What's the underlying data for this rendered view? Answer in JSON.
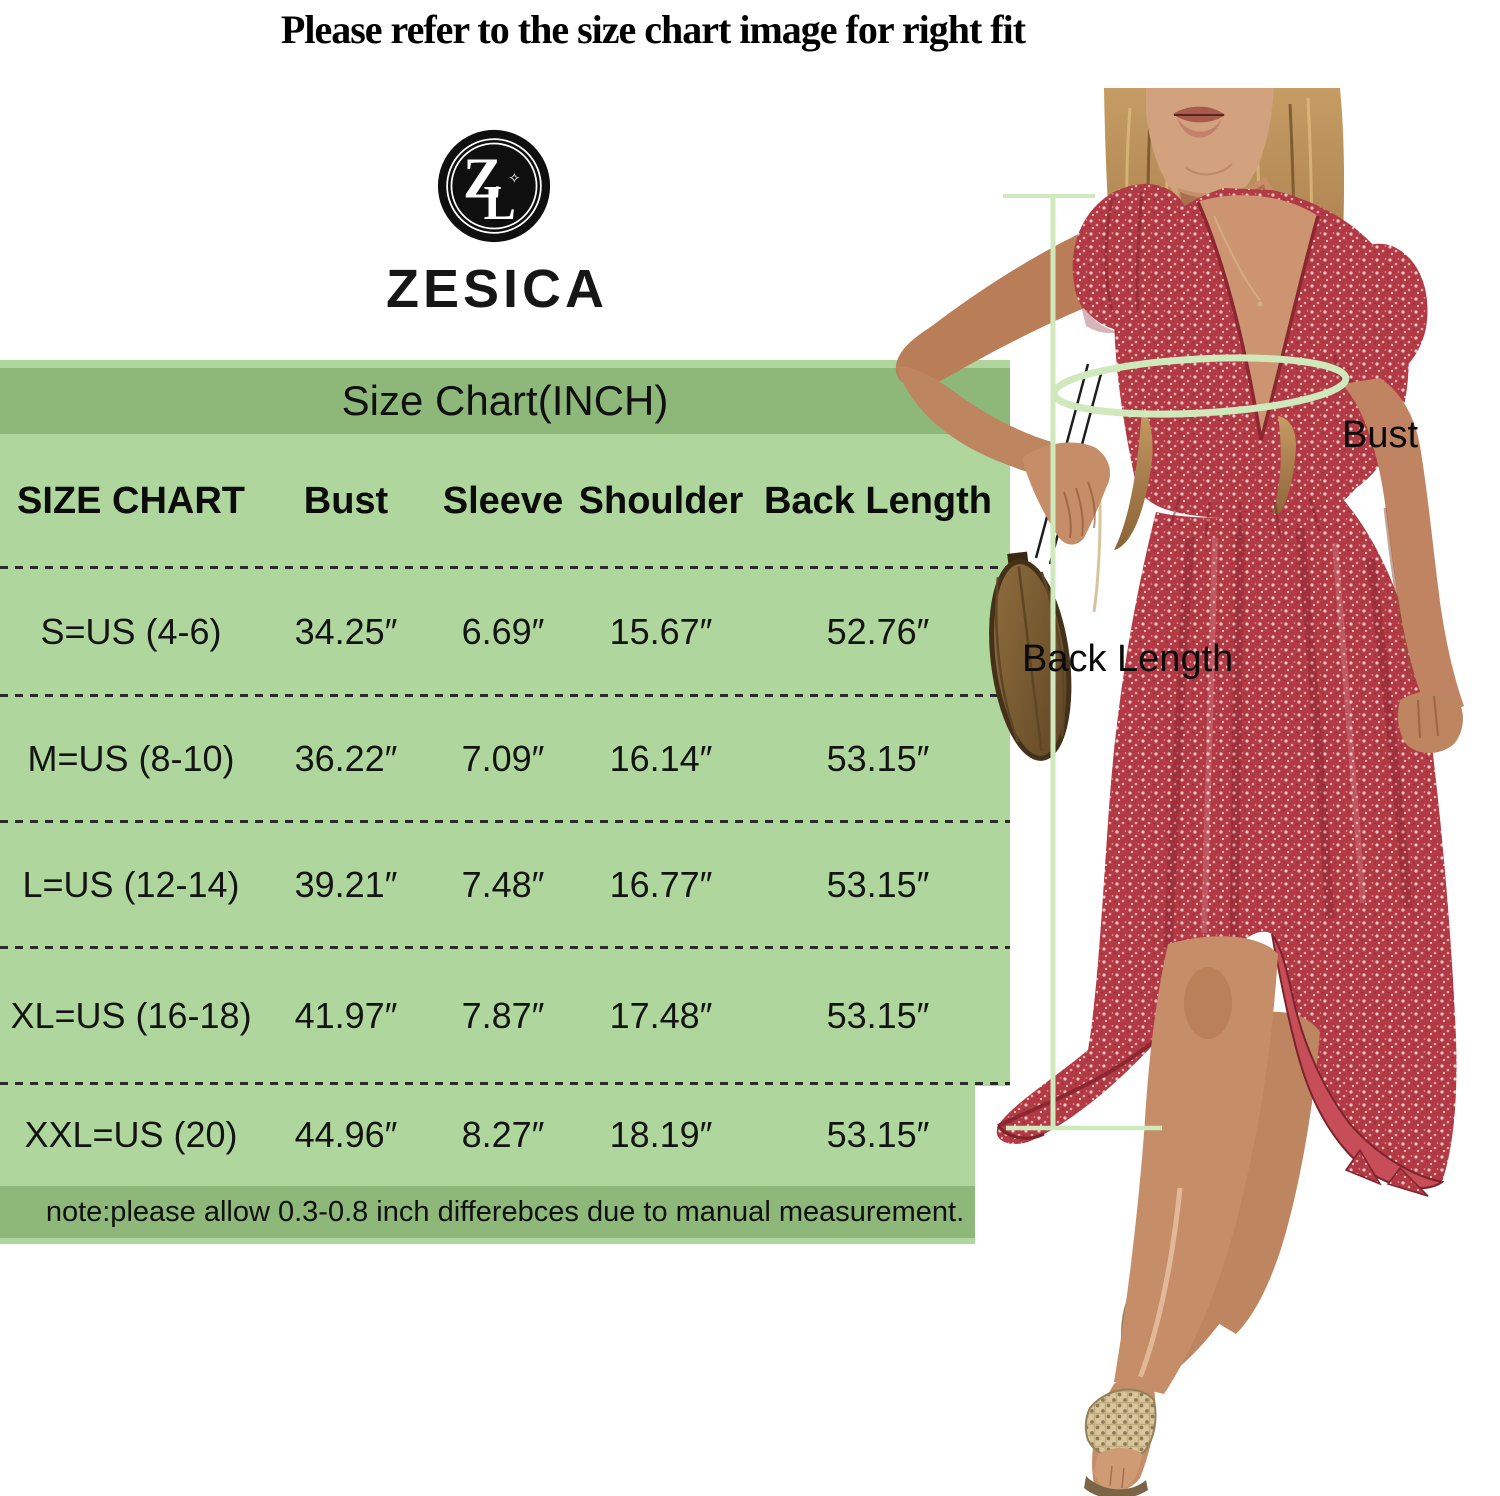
{
  "title": "Please refer to the size chart image for right fit",
  "brand": {
    "name": "ZESICA",
    "monogram_z": "Z",
    "monogram_l": "L"
  },
  "size_chart": {
    "heading": "Size Chart(INCH)",
    "columns": [
      "SIZE CHART",
      "Bust",
      "Sleeve",
      "Shoulder",
      "Back Length"
    ],
    "rows": [
      {
        "size": "S=US (4-6)",
        "bust": "34.25″",
        "sleeve": "6.69″",
        "shoulder": "15.67″",
        "back_length": "52.76″"
      },
      {
        "size": "M=US (8-10)",
        "bust": "36.22″",
        "sleeve": "7.09″",
        "shoulder": "16.14″",
        "back_length": "53.15″"
      },
      {
        "size": "L=US (12-14)",
        "bust": "39.21″",
        "sleeve": "7.48″",
        "shoulder": "16.77″",
        "back_length": "53.15″"
      },
      {
        "size": "XL=US (16-18)",
        "bust": "41.97″",
        "sleeve": "7.87″",
        "shoulder": "17.48″",
        "back_length": "53.15″"
      },
      {
        "size": "XXL=US (20)",
        "bust": "44.96″",
        "sleeve": "8.27″",
        "shoulder": "18.19″",
        "back_length": "53.15″"
      }
    ],
    "note": "note:please allow 0.3-0.8 inch differebces due to manual measurement."
  },
  "figure": {
    "bust_label": "Bust",
    "back_length_label": "Back Length"
  },
  "colors": {
    "table_body_green": "#afd79d",
    "table_band_green": "#8eb77a",
    "measure_line_green": "#cfe9bd",
    "dress_red": "#b23a45",
    "skin_tone": "#c68e69",
    "hair_brown": "#a87c4c"
  }
}
